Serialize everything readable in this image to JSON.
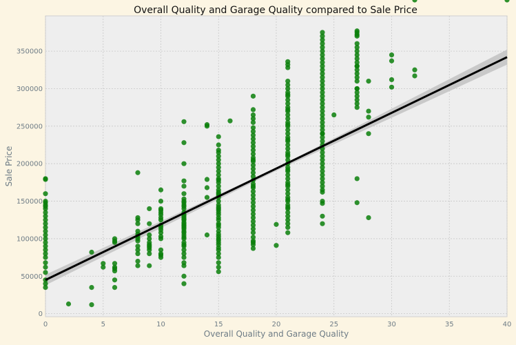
{
  "chart_data": {
    "type": "scatter",
    "title": "Overall Quality and Garage Quality compared to Sale Price",
    "xlabel": "Overall Quality and Garage Quality",
    "ylabel": "Sale Price",
    "xlim": [
      0,
      40
    ],
    "ylim": [
      -4000,
      397000
    ],
    "xticks": [
      0,
      5,
      10,
      15,
      20,
      25,
      30,
      35,
      40
    ],
    "yticks": [
      0,
      50000,
      100000,
      150000,
      200000,
      250000,
      300000,
      350000
    ],
    "xtick_labels": [
      "0",
      "5",
      "10",
      "15",
      "20",
      "25",
      "30",
      "35",
      "40"
    ],
    "ytick_labels": [
      "0",
      "50000",
      "100000",
      "150000",
      "200000",
      "250000",
      "300000",
      "350000"
    ],
    "grid": true,
    "colors": {
      "figure_bg": "#fcf5e3",
      "axes_bg": "#eeeeee",
      "grid": "#c8c8c8",
      "points": "#0a7f0a",
      "fit_line": "#000000",
      "ci_band": "#c4c4c4",
      "text": "#6e7c86",
      "title": "#111111"
    },
    "points_x": [
      0,
      0,
      0,
      0,
      0,
      0,
      0,
      0,
      0,
      0,
      0,
      0,
      0,
      0,
      0,
      0,
      0,
      0,
      0,
      0,
      0,
      0,
      0,
      0,
      0,
      0,
      0,
      2,
      4,
      4,
      4,
      5,
      5,
      6,
      6,
      6,
      6,
      6,
      6,
      6,
      6,
      6,
      8,
      8,
      8,
      8,
      8,
      8,
      8,
      8,
      8,
      8,
      8,
      8,
      8,
      8,
      9,
      9,
      9,
      9,
      9,
      9,
      9,
      9,
      9,
      9,
      9,
      10,
      10,
      10,
      10,
      10,
      10,
      10,
      10,
      10,
      10,
      10,
      10,
      10,
      10,
      10,
      10,
      10,
      10,
      12,
      12,
      12,
      12,
      12,
      12,
      12,
      12,
      12,
      12,
      12,
      12,
      12,
      12,
      12,
      12,
      12,
      12,
      12,
      12,
      12,
      12,
      12,
      12,
      12,
      12,
      12,
      12,
      12,
      12,
      12,
      12,
      12,
      12,
      12,
      12,
      12,
      12,
      12,
      14,
      14,
      14,
      14,
      14,
      14,
      15,
      15,
      15,
      15,
      15,
      15,
      15,
      15,
      15,
      15,
      15,
      15,
      15,
      15,
      15,
      15,
      15,
      15,
      15,
      15,
      15,
      15,
      15,
      15,
      15,
      15,
      15,
      15,
      15,
      15,
      15,
      15,
      15,
      15,
      15,
      15,
      15,
      15,
      15,
      15,
      15,
      15,
      15,
      15,
      15,
      16,
      18,
      18,
      18,
      18,
      18,
      18,
      18,
      18,
      18,
      18,
      18,
      18,
      18,
      18,
      18,
      18,
      18,
      18,
      18,
      18,
      18,
      18,
      18,
      18,
      18,
      18,
      18,
      18,
      18,
      18,
      18,
      18,
      18,
      18,
      18,
      18,
      18,
      18,
      18,
      18,
      18,
      20,
      20,
      21,
      21,
      21,
      21,
      21,
      21,
      21,
      21,
      21,
      21,
      21,
      21,
      21,
      21,
      21,
      21,
      21,
      21,
      21,
      21,
      21,
      21,
      21,
      21,
      21,
      21,
      21,
      21,
      21,
      21,
      21,
      21,
      21,
      21,
      21,
      21,
      21,
      21,
      21,
      21,
      21,
      21,
      21,
      21,
      21,
      21,
      21,
      21,
      21,
      21,
      21,
      21,
      21,
      24,
      24,
      24,
      24,
      24,
      24,
      24,
      24,
      24,
      24,
      24,
      24,
      24,
      24,
      24,
      24,
      24,
      24,
      24,
      24,
      24,
      24,
      24,
      24,
      24,
      24,
      24,
      24,
      24,
      24,
      24,
      24,
      24,
      24,
      24,
      24,
      24,
      24,
      24,
      24,
      24,
      24,
      24,
      24,
      24,
      24,
      24,
      24,
      24,
      25,
      27,
      27,
      27,
      27,
      27,
      27,
      27,
      27,
      27,
      27,
      27,
      27,
      27,
      27,
      27,
      27,
      27,
      27,
      27,
      27,
      27,
      27,
      27,
      27,
      27,
      28,
      28,
      28,
      28,
      28,
      30,
      30,
      30,
      30,
      32,
      32,
      32,
      40
    ],
    "points_y": [
      35000,
      40000,
      45000,
      55000,
      62000,
      68000,
      75000,
      80000,
      85000,
      90000,
      95000,
      100000,
      105000,
      110000,
      115000,
      120000,
      125000,
      130000,
      135000,
      140000,
      143000,
      145000,
      148000,
      150000,
      160000,
      180000,
      179000,
      13000,
      12000,
      35000,
      82000,
      62000,
      67000,
      35000,
      45000,
      57000,
      60000,
      62000,
      67000,
      95000,
      100000,
      97000,
      64000,
      70000,
      80000,
      85000,
      90000,
      97000,
      100000,
      103000,
      106000,
      110000,
      120000,
      125000,
      128000,
      188000,
      64000,
      80000,
      85000,
      88000,
      90000,
      92000,
      95000,
      100000,
      105000,
      120000,
      140000,
      75000,
      78000,
      80000,
      85000,
      100000,
      103000,
      108000,
      112000,
      115000,
      118000,
      125000,
      128000,
      132000,
      135000,
      138000,
      140000,
      150000,
      165000,
      40000,
      50000,
      64000,
      68000,
      75000,
      80000,
      85000,
      90000,
      95000,
      100000,
      105000,
      110000,
      115000,
      118000,
      120000,
      125000,
      128000,
      130000,
      135000,
      140000,
      143000,
      145000,
      148000,
      150000,
      153000,
      160000,
      170000,
      177000,
      200000,
      228000,
      256000,
      92000,
      102000,
      108000,
      113000,
      117000,
      122000,
      126000,
      132000,
      105000,
      155000,
      168000,
      179000,
      250000,
      252000,
      56000,
      62000,
      68000,
      75000,
      80000,
      85000,
      88000,
      92000,
      95000,
      100000,
      103000,
      106000,
      110000,
      115000,
      120000,
      125000,
      128000,
      132000,
      135000,
      140000,
      145000,
      150000,
      155000,
      160000,
      165000,
      170000,
      175000,
      180000,
      185000,
      190000,
      195000,
      200000,
      205000,
      210000,
      215000,
      218000,
      225000,
      236000,
      98000,
      118000,
      138000,
      158000,
      178000,
      142000,
      162000,
      257000,
      87000,
      92000,
      97000,
      102000,
      108000,
      113000,
      118000,
      123000,
      128000,
      133000,
      138000,
      143000,
      148000,
      153000,
      158000,
      163000,
      168000,
      173000,
      178000,
      183000,
      188000,
      193000,
      198000,
      203000,
      208000,
      213000,
      218000,
      223000,
      228000,
      233000,
      238000,
      243000,
      248000,
      255000,
      260000,
      265000,
      272000,
      290000,
      95000,
      170000,
      205000,
      91000,
      119000,
      108000,
      115000,
      120000,
      125000,
      130000,
      135000,
      140000,
      145000,
      150000,
      155000,
      160000,
      165000,
      170000,
      175000,
      180000,
      185000,
      190000,
      195000,
      200000,
      205000,
      210000,
      215000,
      220000,
      225000,
      230000,
      235000,
      240000,
      245000,
      250000,
      255000,
      260000,
      265000,
      270000,
      275000,
      280000,
      285000,
      290000,
      295000,
      300000,
      305000,
      310000,
      328000,
      332000,
      336000,
      142000,
      152000,
      172000,
      192000,
      212000,
      232000,
      252000,
      272000,
      292000,
      130000,
      147000,
      150000,
      162000,
      165000,
      170000,
      175000,
      180000,
      185000,
      190000,
      195000,
      200000,
      205000,
      210000,
      215000,
      220000,
      225000,
      230000,
      235000,
      240000,
      245000,
      250000,
      255000,
      260000,
      265000,
      270000,
      275000,
      280000,
      285000,
      290000,
      295000,
      300000,
      305000,
      310000,
      315000,
      320000,
      325000,
      330000,
      335000,
      340000,
      345000,
      350000,
      355000,
      360000,
      365000,
      370000,
      375000,
      120000,
      240000,
      265000,
      275000,
      280000,
      285000,
      290000,
      300000,
      310000,
      315000,
      320000,
      325000,
      330000,
      335000,
      340000,
      345000,
      350000,
      355000,
      360000,
      370000,
      372000,
      375000,
      377000,
      300000,
      295000,
      330000,
      148000,
      180000,
      240000,
      262000,
      270000,
      128000,
      310000,
      337000,
      345000,
      302000,
      312000,
      317000,
      325000
    ],
    "fit_line": {
      "x": [
        0,
        40
      ],
      "y": [
        45000,
        342000
      ]
    },
    "ci_band": {
      "x": [
        0,
        20,
        40
      ],
      "upper": [
        52000,
        194500,
        352000
      ],
      "lower": [
        38000,
        190500,
        332000
      ]
    }
  }
}
